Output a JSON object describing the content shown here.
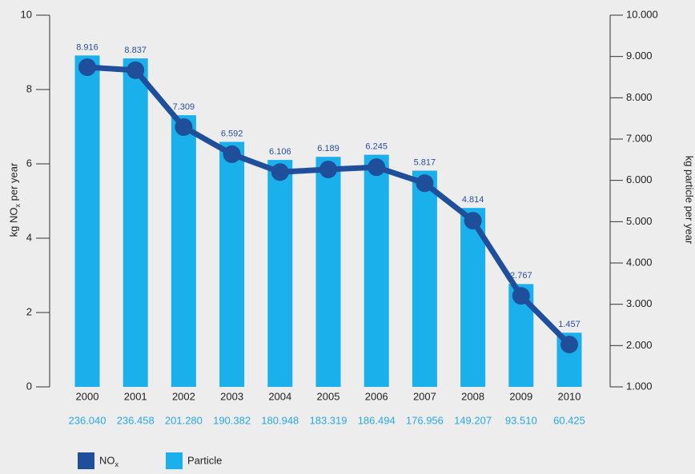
{
  "chart_data": {
    "type": "bar",
    "categories": [
      "2000",
      "2001",
      "2002",
      "2003",
      "2004",
      "2005",
      "2006",
      "2007",
      "2008",
      "2009",
      "2010"
    ],
    "secondary_labels": [
      "236.040",
      "236.458",
      "201.280",
      "190.382",
      "180.948",
      "183.319",
      "186.494",
      "176.956",
      "149.207",
      "93.510",
      "60.425"
    ],
    "ylabel": "kg NOx per year",
    "y2label": "kg particle per year",
    "ylim": [
      0,
      10
    ],
    "yticks": [
      0,
      2,
      4,
      6,
      8,
      10
    ],
    "y2lim": [
      1000,
      10000
    ],
    "y2ticks": [
      {
        "value": 1000,
        "label": "1.000"
      },
      {
        "value": 2000,
        "label": "2.000"
      },
      {
        "value": 3000,
        "label": "3.000"
      },
      {
        "value": 4000,
        "label": "4.000"
      },
      {
        "value": 5000,
        "label": "5.000"
      },
      {
        "value": 6000,
        "label": "6.000"
      },
      {
        "value": 7000,
        "label": "7.000"
      },
      {
        "value": 8000,
        "label": "8.000"
      },
      {
        "value": 9000,
        "label": "9.000"
      },
      {
        "value": 10000,
        "label": "10.000"
      }
    ],
    "series": [
      {
        "name": "NOx",
        "type": "line",
        "color": "#1f4e9b",
        "values": [
          8.6,
          8.52,
          6.99,
          6.26,
          5.78,
          5.85,
          5.91,
          5.48,
          4.47,
          2.45,
          1.14
        ]
      },
      {
        "name": "Particle",
        "type": "bar",
        "color": "#1ab0ec",
        "values": [
          8.916,
          8.837,
          7.309,
          6.592,
          6.106,
          6.189,
          6.245,
          5.817,
          4.814,
          2.767,
          1.457
        ]
      }
    ],
    "legend": "bottom-left"
  }
}
